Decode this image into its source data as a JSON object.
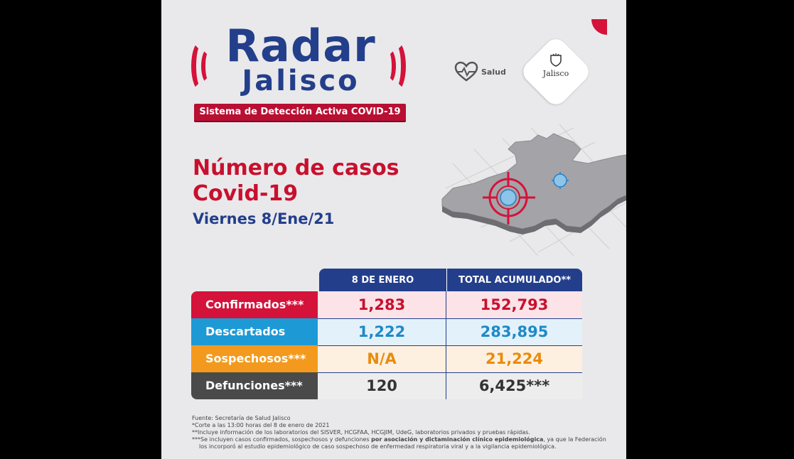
{
  "brand": {
    "radar": "Radar",
    "jalisco": "Jalisco",
    "ribbon": "Sistema de Detección Activa COVID-19",
    "salud": "Salud",
    "seal_text": "Jalisco"
  },
  "heading": {
    "line1": "Número de casos",
    "line2": "Covid-19",
    "date": "Viernes 8/Ene/21"
  },
  "table": {
    "col1": "8 DE ENERO",
    "col2": "TOTAL ACUMULADO**",
    "rows": [
      {
        "label": "Confirmados***",
        "day": "1,283",
        "total": "152,793",
        "label_bg": "#d4123a",
        "cell_bg": "#fbe3e8",
        "color": "#c8102e"
      },
      {
        "label": "Descartados",
        "day": "1,222",
        "total": "283,895",
        "label_bg": "#1d9ad6",
        "cell_bg": "#e3f1fa",
        "color": "#1d8ac8"
      },
      {
        "label": "Sospechosos***",
        "day": "N/A",
        "total": "21,224",
        "label_bg": "#f39a1e",
        "cell_bg": "#fdf0e0",
        "color": "#e98b0c"
      },
      {
        "label": "Defunciones***",
        "day": "120",
        "total": "6,425***",
        "label_bg": "#4a4a4a",
        "cell_bg": "#ededed",
        "color": "#333333"
      }
    ]
  },
  "notes": {
    "n1": "Fuente: Secretaría de Salud Jalisco",
    "n2": "*Corte a las 13:00 horas del 8 de enero de 2021",
    "n3": "**Incluye información de los laboratorios del SISVER, HCGFAA, HCGJIM, UdeG, laboratorios privados y pruebas rápidas.",
    "n4a": "***Se incluyen casos confirmados, sospechosos y defunciones ",
    "n4b": "por asociación y dictaminación clínico epidemiológica",
    "n4c": ", ya que la Federación",
    "n5": "los incorporó al estudio epidemiológico de caso sospechoso de enfermedad respiratoria viral y a la vigilancia epidemiológica."
  }
}
